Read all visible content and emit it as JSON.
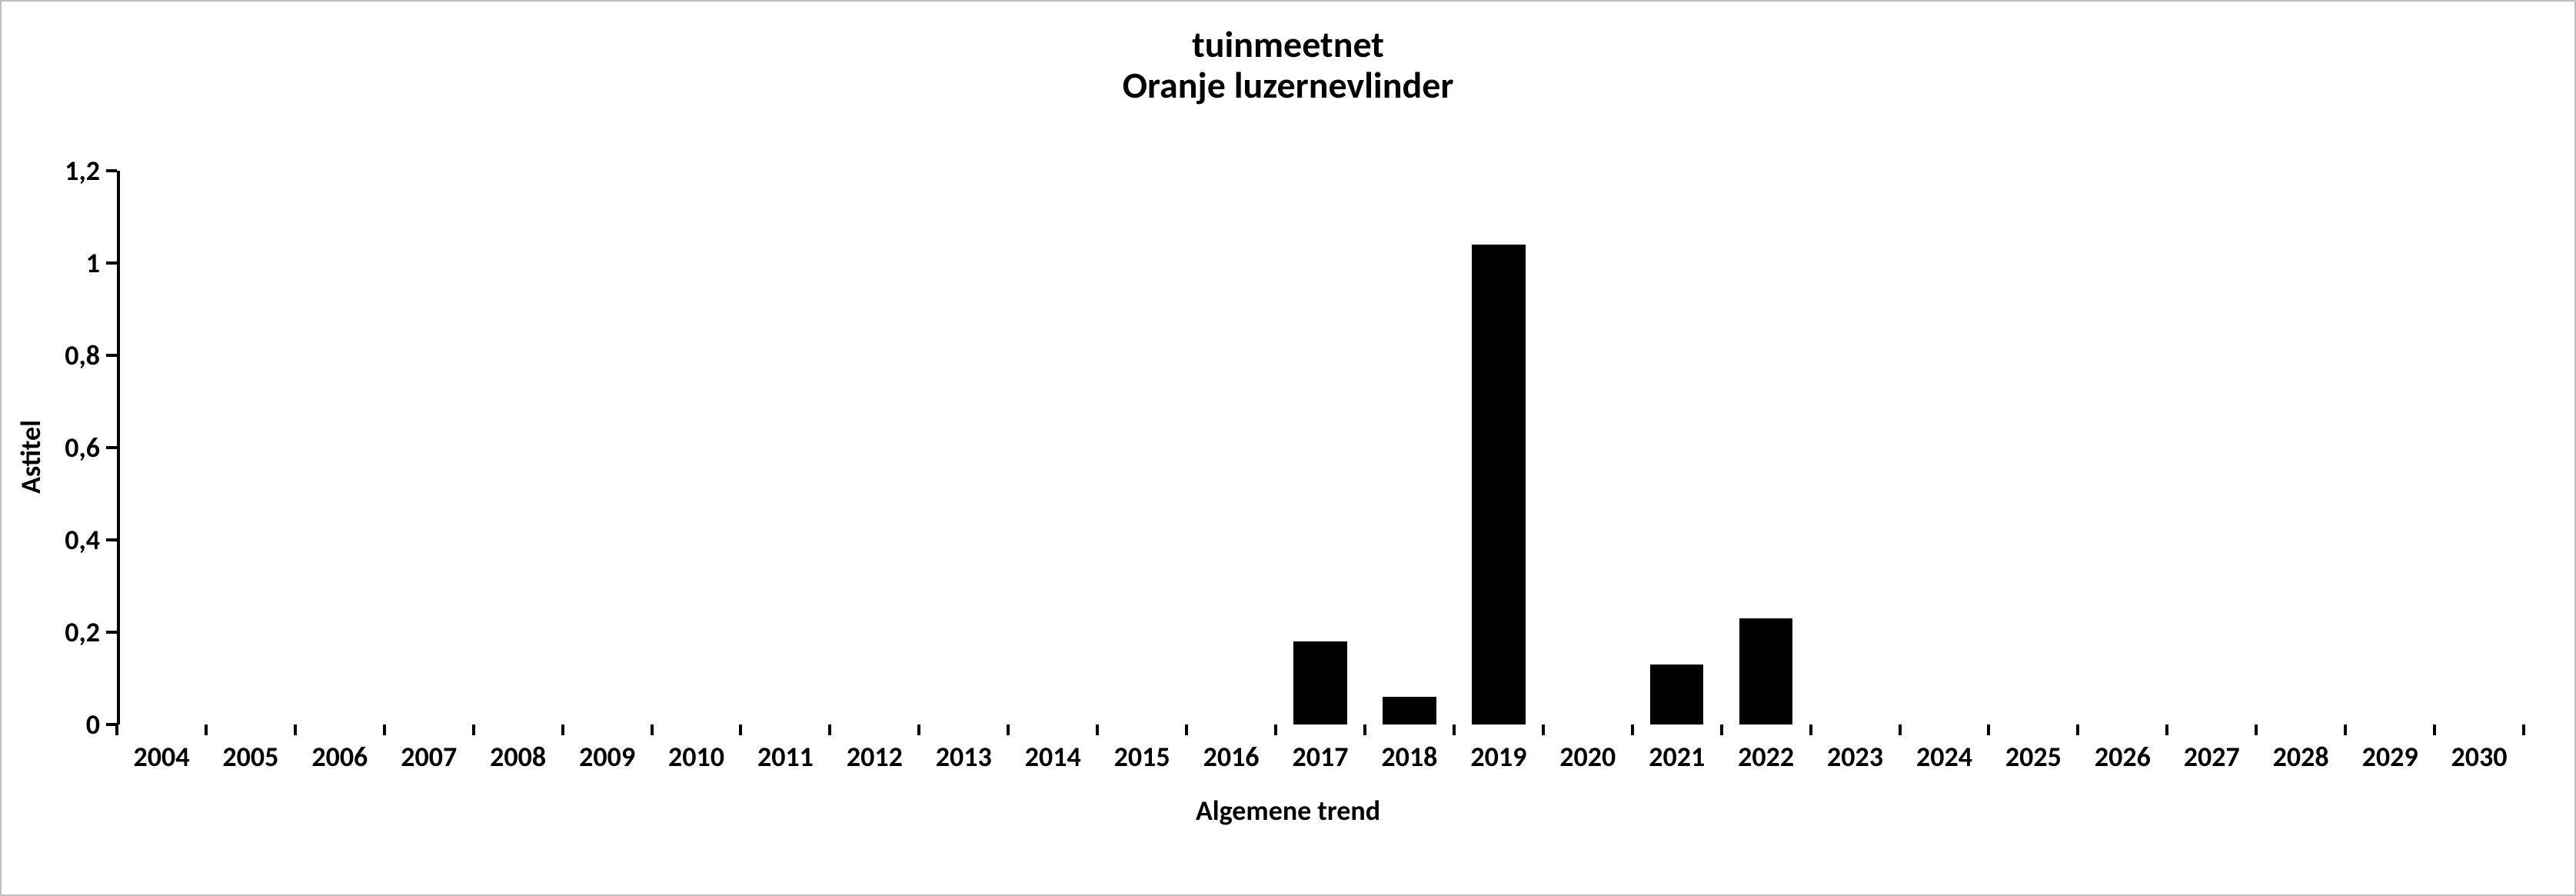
{
  "chart": {
    "type": "bar",
    "title_line1": "tuinmeetnet",
    "title_line2": "Oranje luzernevlinder",
    "title_fontsize": 48,
    "ylabel": "Astitel",
    "xlabel": "Algemene trend",
    "axis_label_fontsize": 36,
    "tick_label_fontsize": 36,
    "ylim": [
      0,
      1.2
    ],
    "ytick_step": 0.2,
    "ytick_labels": [
      "0",
      "0,2",
      "0,4",
      "0,6",
      "0,8",
      "1",
      "1,2"
    ],
    "categories": [
      "2004",
      "2005",
      "2006",
      "2007",
      "2008",
      "2009",
      "2010",
      "2011",
      "2012",
      "2013",
      "2014",
      "2015",
      "2016",
      "2017",
      "2018",
      "2019",
      "2020",
      "2021",
      "2022",
      "2023",
      "2024",
      "2025",
      "2026",
      "2027",
      "2028",
      "2029",
      "2030"
    ],
    "values": [
      0,
      0,
      0,
      0,
      0,
      0,
      0,
      0,
      0,
      0,
      0,
      0,
      0,
      0.18,
      0.06,
      1.04,
      0,
      0.13,
      0.23,
      0,
      0,
      0,
      0,
      0,
      0,
      0,
      0
    ],
    "bar_color": "#000000",
    "bar_width_ratio": 0.6,
    "background_color": "#ffffff",
    "border_color": "#bfbfbf",
    "axis_color": "#000000",
    "label_color": "#000000",
    "axis_line_width": 4,
    "tick_length": 14
  }
}
